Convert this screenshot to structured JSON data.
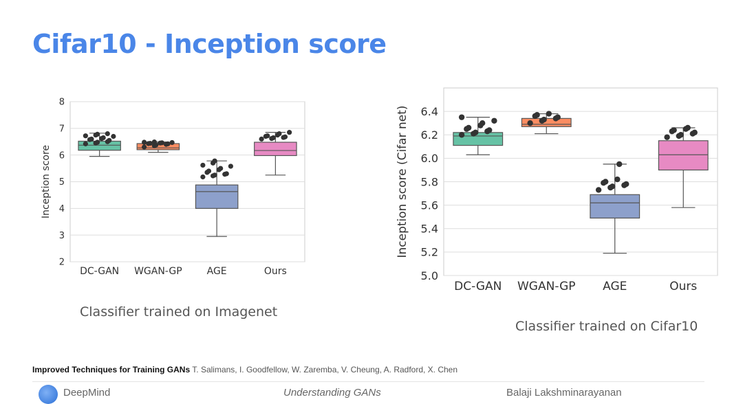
{
  "title": "Cifar10 - Inception score",
  "captions": {
    "left": "Classifier trained on Imagenet",
    "right": "Classifier trained on Cifar10"
  },
  "citation": {
    "paper": "Improved Techniques for Training GANs",
    "authors": "T. Salimans, I. Goodfellow, W. Zaremba, V. Cheung, A. Radford, X. Chen"
  },
  "footer": {
    "brand": "DeepMind",
    "talk": "Understanding GANs",
    "speaker": "Balaji Lakshminarayanan"
  },
  "colors": {
    "title": "#4a86e8",
    "box_fills": [
      "#66c2a5",
      "#fc8d62",
      "#8da0cb",
      "#e78ac3"
    ],
    "points": "#333333",
    "plot_background": "#ffffff",
    "grid": "#dddddd"
  },
  "chart_data": [
    {
      "type": "box",
      "title": "",
      "xlabel": "",
      "ylabel": "Inception score",
      "ylim": [
        2,
        8
      ],
      "yticks": [
        2,
        3,
        4,
        5,
        6,
        7,
        8
      ],
      "grid": true,
      "categories": [
        "DC-GAN",
        "WGAN-GP",
        "AGE",
        "Ours"
      ],
      "boxes": [
        {
          "category": "DC-GAN",
          "whislo": 5.95,
          "q1": 6.18,
          "med": 6.37,
          "q3": 6.52,
          "whishi": 6.82,
          "points": [
            6.42,
            6.45,
            6.48,
            6.5,
            6.55,
            6.58,
            6.6,
            6.62,
            6.65,
            6.7,
            6.72,
            6.75,
            6.78,
            6.8
          ]
        },
        {
          "category": "WGAN-GP",
          "whislo": 6.1,
          "q1": 6.2,
          "med": 6.27,
          "q3": 6.43,
          "whishi": 6.49,
          "points": [
            6.3,
            6.35,
            6.38,
            6.4,
            6.42,
            6.43,
            6.44,
            6.45,
            6.46,
            6.47,
            6.48,
            6.49
          ]
        },
        {
          "category": "AGE",
          "whislo": 2.95,
          "q1": 4.0,
          "med": 4.63,
          "q3": 4.88,
          "whishi": 5.78,
          "points": [
            5.18,
            5.22,
            5.25,
            5.28,
            5.3,
            5.35,
            5.4,
            5.45,
            5.5,
            5.58,
            5.62,
            5.7,
            5.78
          ]
        },
        {
          "category": "Ours",
          "whislo": 5.25,
          "q1": 5.98,
          "med": 6.17,
          "q3": 6.48,
          "whishi": 6.85,
          "points": [
            6.6,
            6.62,
            6.65,
            6.66,
            6.68,
            6.7,
            6.72,
            6.75,
            6.8,
            6.85
          ]
        }
      ]
    },
    {
      "type": "box",
      "title": "",
      "xlabel": "",
      "ylabel": "Inception score (Cifar net)",
      "ylim": [
        5.0,
        6.6
      ],
      "yticks": [
        5.0,
        5.2,
        5.4,
        5.6,
        5.8,
        6.0,
        6.2,
        6.4
      ],
      "grid": true,
      "categories": [
        "DC-GAN",
        "WGAN-GP",
        "AGE",
        "Ours"
      ],
      "boxes": [
        {
          "category": "DC-GAN",
          "whislo": 6.03,
          "q1": 6.11,
          "med": 6.19,
          "q3": 6.22,
          "whishi": 6.35,
          "points": [
            6.2,
            6.21,
            6.22,
            6.23,
            6.24,
            6.25,
            6.26,
            6.28,
            6.3,
            6.32,
            6.35
          ]
        },
        {
          "category": "WGAN-GP",
          "whislo": 6.21,
          "q1": 6.27,
          "med": 6.29,
          "q3": 6.34,
          "whishi": 6.38,
          "points": [
            6.3,
            6.32,
            6.33,
            6.34,
            6.35,
            6.36,
            6.37,
            6.38
          ]
        },
        {
          "category": "AGE",
          "whislo": 5.19,
          "q1": 5.49,
          "med": 5.62,
          "q3": 5.69,
          "whishi": 5.95,
          "points": [
            5.73,
            5.75,
            5.76,
            5.77,
            5.78,
            5.79,
            5.8,
            5.82,
            5.95
          ]
        },
        {
          "category": "Ours",
          "whislo": 5.58,
          "q1": 5.9,
          "med": 6.03,
          "q3": 6.15,
          "whishi": 6.26,
          "points": [
            6.18,
            6.19,
            6.2,
            6.21,
            6.22,
            6.23,
            6.24,
            6.25,
            6.26
          ]
        }
      ]
    }
  ]
}
